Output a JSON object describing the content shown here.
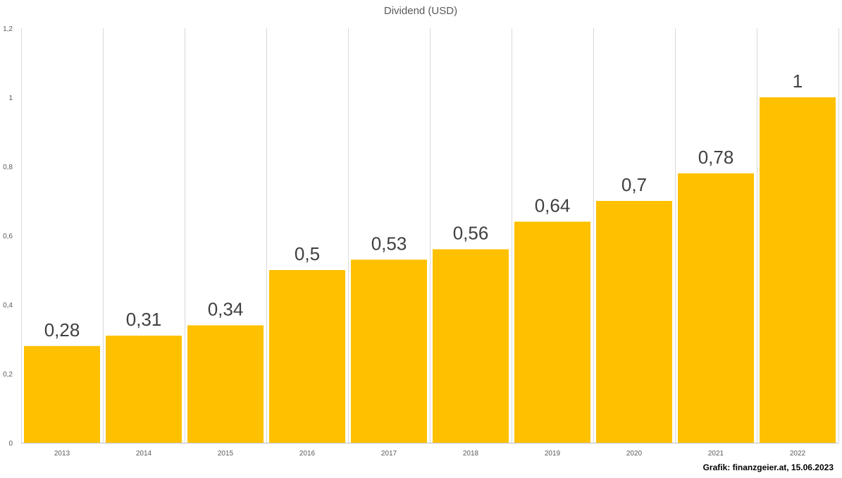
{
  "chart_data": {
    "type": "bar",
    "title": "Dividend (USD)",
    "categories": [
      "2013",
      "2014",
      "2015",
      "2016",
      "2017",
      "2018",
      "2019",
      "2020",
      "2021",
      "2022"
    ],
    "values": [
      0.28,
      0.31,
      0.34,
      0.5,
      0.53,
      0.56,
      0.64,
      0.7,
      0.78,
      1
    ],
    "data_labels": [
      "0,28",
      "0,31",
      "0,34",
      "0,5",
      "0,53",
      "0,56",
      "0,64",
      "0,7",
      "0,78",
      "1"
    ],
    "ylim": [
      0,
      1.2
    ],
    "yticks": [
      0,
      0.2,
      0.4,
      0.6,
      0.8,
      1,
      1.2
    ],
    "ytick_labels": [
      "0",
      "0,2",
      "0,4",
      "0,6",
      "0,8",
      "1",
      "1,2"
    ],
    "grid": "vertical",
    "bar_color": "#FFC000",
    "xlabel": "",
    "ylabel": ""
  },
  "credit": "Grafik: finanzgeier.at, 15.06.2023"
}
